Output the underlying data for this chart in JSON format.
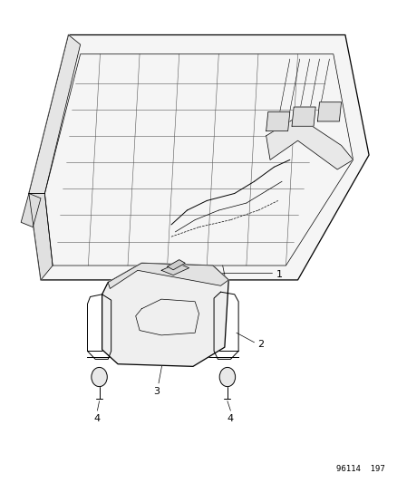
{
  "background_color": "#ffffff",
  "line_color": "#000000",
  "figsize": [
    4.39,
    5.33
  ],
  "dpi": 100,
  "fig_number_text": "96114  197"
}
